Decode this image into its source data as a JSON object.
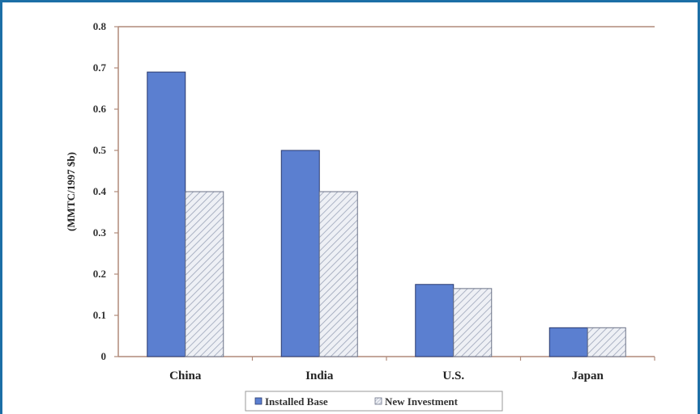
{
  "chart_data": {
    "type": "bar",
    "categories": [
      "China",
      "India",
      "U.S.",
      "Japan"
    ],
    "series": [
      {
        "name": "Installed Base",
        "values": [
          0.69,
          0.5,
          0.175,
          0.07
        ],
        "color": "#5b7fd0",
        "pattern": "solid"
      },
      {
        "name": "New Investment",
        "values": [
          0.4,
          0.4,
          0.165,
          0.07
        ],
        "color": "#dfe4ee",
        "pattern": "diagonal-hatch"
      }
    ],
    "title": "",
    "xlabel": "",
    "ylabel": "(MMTC/1997 $b)",
    "ylim": [
      0,
      0.8
    ],
    "yticks": [
      "0",
      "0.1",
      "0.2",
      "0.3",
      "0.4",
      "0.5",
      "0.6",
      "0.7",
      "0.8"
    ],
    "ytick_values": [
      0,
      0.1,
      0.2,
      0.3,
      0.4,
      0.5,
      0.6,
      0.7,
      0.8
    ],
    "grid": false,
    "legend_position": "bottom"
  },
  "colors": {
    "frame": "#1c6fa6",
    "axis": "#b08a7a"
  }
}
